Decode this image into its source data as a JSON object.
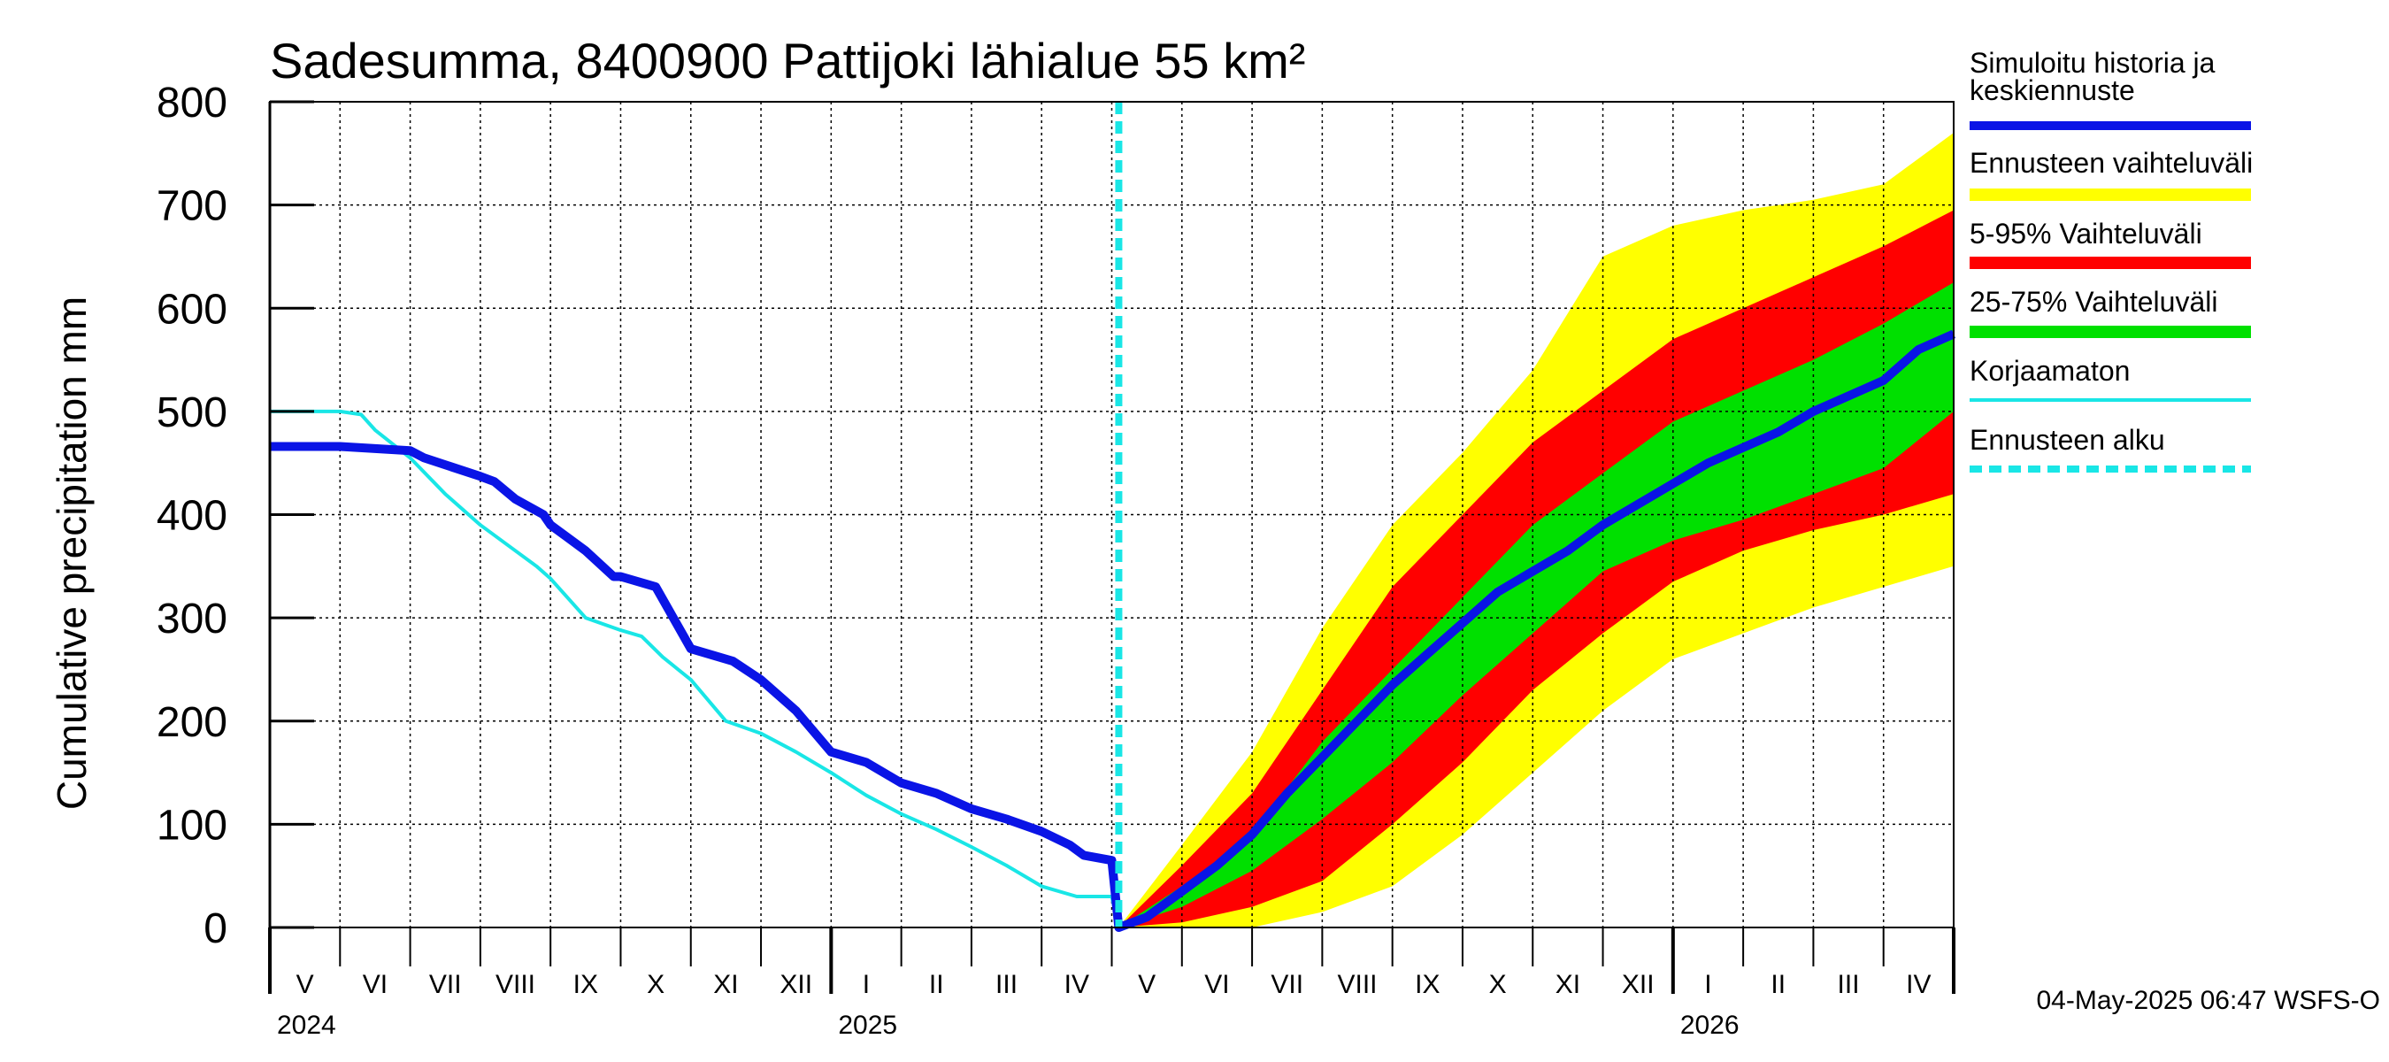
{
  "colors": {
    "median": "#0a14e6",
    "uncorrected": "#19e6e6",
    "forecast_start": "#19e6e6",
    "range_full": "#ffff00",
    "range_5_95": "#ff0000",
    "range_25_75": "#00e000",
    "grid": "#000000",
    "background": "#ffffff"
  },
  "chart_data": {
    "type": "area",
    "title": "Sadesumma, 8400900 Pattijoki lähialue 55 km²",
    "ylabel": "Cumulative precipitation   mm",
    "xlabel": "",
    "ylim": [
      0,
      800
    ],
    "yticks": [
      0,
      100,
      200,
      300,
      400,
      500,
      600,
      700,
      800
    ],
    "x_unit": "month index starting May 2024 (0 = 1 May 2024)",
    "xlim": [
      0,
      24
    ],
    "forecast_start_x": 12.1,
    "months": [
      "V",
      "VI",
      "VII",
      "VIII",
      "IX",
      "X",
      "XI",
      "XII",
      "I",
      "II",
      "III",
      "IV",
      "V",
      "VI",
      "VII",
      "VIII",
      "IX",
      "X",
      "XI",
      "XII",
      "I",
      "II",
      "III",
      "IV"
    ],
    "years": [
      {
        "label": "2024",
        "x": 0
      },
      {
        "label": "2025",
        "x": 8
      },
      {
        "label": "2026",
        "x": 20
      }
    ],
    "grid": true,
    "timestamp": "04-May-2025 06:47 WSFS-O",
    "legend": [
      {
        "label": "Simuloitu historia ja keskiennuste",
        "lines": [
          "Simuloitu historia ja",
          "keskiennuste"
        ],
        "key": "median",
        "style": "thick"
      },
      {
        "label": "Ennusteen vaihteluväli",
        "lines": [
          "Ennusteen vaihteluväli"
        ],
        "key": "range_full",
        "style": "band"
      },
      {
        "label": "5-95% Vaihteluväli",
        "lines": [
          "5-95% Vaihteluväli"
        ],
        "key": "range_5_95",
        "style": "band"
      },
      {
        "label": "25-75% Vaihteluväli",
        "lines": [
          "25-75% Vaihteluväli"
        ],
        "key": "range_25_75",
        "style": "band"
      },
      {
        "label": "Korjaamaton",
        "lines": [
          "Korjaamaton"
        ],
        "key": "uncorrected",
        "style": "thin"
      },
      {
        "label": "Ennusteen alku",
        "lines": [
          "Ennusteen alku"
        ],
        "key": "forecast_start",
        "style": "dashed"
      }
    ],
    "series": [
      {
        "name": "Simuloitu historia ja keskiennuste",
        "x": [
          0,
          1.0,
          2.0,
          2.2,
          3.0,
          3.2,
          3.5,
          3.9,
          4.0,
          4.5,
          4.9,
          5.0,
          5.5,
          6.0,
          6.6,
          7.0,
          7.5,
          8.0,
          8.5,
          9.0,
          9.5,
          10.0,
          10.5,
          11.0,
          11.4,
          11.6,
          12.0,
          12.1,
          12.5,
          13.0,
          13.5,
          14.0,
          14.5,
          15.0,
          15.5,
          16.0,
          16.5,
          17.0,
          17.5,
          18.0,
          18.5,
          19.0,
          19.5,
          20.0,
          20.5,
          21.0,
          21.5,
          22.0,
          22.5,
          23.0,
          23.5,
          24.0
        ],
        "y": [
          466,
          466,
          462,
          455,
          437,
          432,
          415,
          400,
          390,
          365,
          340,
          340,
          330,
          270,
          258,
          240,
          210,
          170,
          160,
          140,
          130,
          115,
          105,
          93,
          80,
          70,
          65,
          0,
          10,
          35,
          60,
          90,
          130,
          165,
          200,
          235,
          265,
          295,
          325,
          345,
          365,
          390,
          410,
          430,
          450,
          465,
          480,
          500,
          515,
          530,
          560,
          575
        ]
      },
      {
        "name": "Korjaamaton",
        "x": [
          0,
          1.0,
          1.3,
          1.5,
          2.0,
          2.5,
          3.0,
          3.5,
          3.8,
          4.0,
          4.5,
          5.0,
          5.3,
          5.6,
          6.0,
          6.5,
          7.0,
          7.5,
          8.0,
          8.5,
          9.0,
          9.5,
          10.0,
          10.5,
          11.0,
          11.5,
          12.0,
          12.1
        ],
        "y": [
          500,
          500,
          497,
          482,
          455,
          420,
          390,
          365,
          350,
          338,
          300,
          288,
          282,
          262,
          240,
          200,
          188,
          170,
          150,
          128,
          110,
          95,
          78,
          60,
          40,
          30,
          30,
          0
        ]
      }
    ],
    "bands": [
      {
        "name": "Ennusteen vaihteluväli",
        "color_key": "range_full",
        "x": [
          12.1,
          13.0,
          14.0,
          15.0,
          16.0,
          17.0,
          18.0,
          19.0,
          20.0,
          21.0,
          22.0,
          23.0,
          24.0
        ],
        "lower": [
          0,
          0,
          0,
          15,
          40,
          90,
          150,
          210,
          260,
          285,
          310,
          330,
          350
        ],
        "upper": [
          0,
          80,
          170,
          290,
          390,
          460,
          540,
          650,
          680,
          695,
          705,
          720,
          770
        ]
      },
      {
        "name": "5-95% Vaihteluväli",
        "color_key": "range_5_95",
        "x": [
          12.1,
          13.0,
          14.0,
          15.0,
          16.0,
          17.0,
          18.0,
          19.0,
          20.0,
          21.0,
          22.0,
          23.0,
          24.0
        ],
        "lower": [
          0,
          5,
          20,
          45,
          100,
          160,
          230,
          285,
          335,
          365,
          385,
          400,
          420
        ],
        "upper": [
          0,
          60,
          130,
          230,
          330,
          400,
          470,
          520,
          570,
          600,
          630,
          660,
          695
        ]
      },
      {
        "name": "25-75% Vaihteluväli",
        "color_key": "range_25_75",
        "x": [
          12.1,
          13.0,
          14.0,
          15.0,
          16.0,
          17.0,
          18.0,
          19.0,
          20.0,
          21.0,
          22.0,
          23.0,
          24.0
        ],
        "lower": [
          0,
          20,
          55,
          105,
          160,
          225,
          285,
          345,
          375,
          395,
          420,
          445,
          500
        ],
        "upper": [
          0,
          40,
          90,
          180,
          250,
          320,
          390,
          440,
          490,
          520,
          550,
          585,
          625
        ]
      }
    ]
  }
}
